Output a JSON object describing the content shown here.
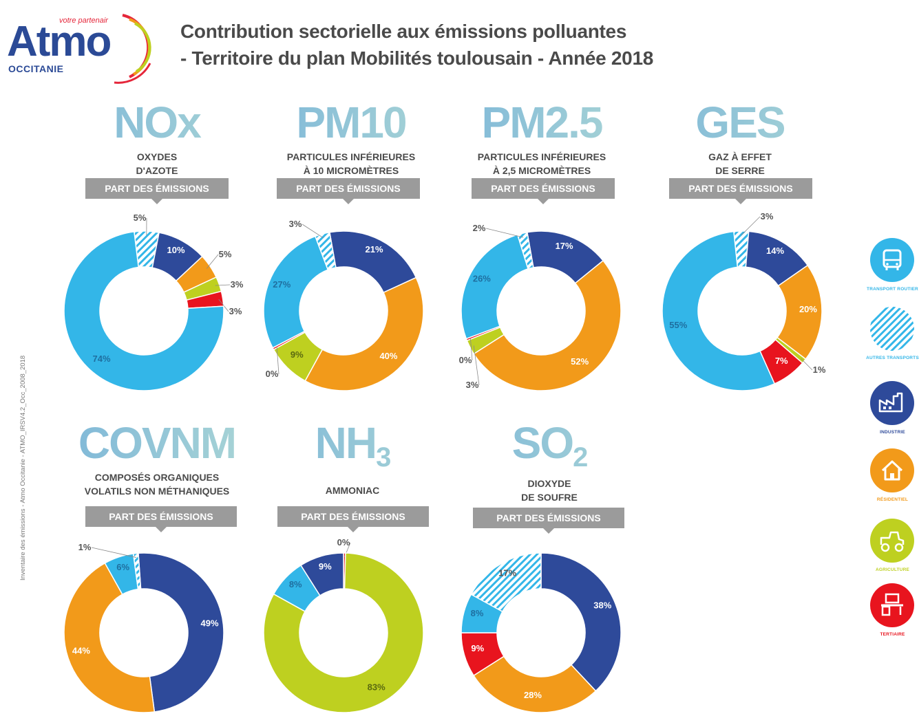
{
  "header": {
    "logo_tagline": "votre partenair",
    "logo_word": "Atmo",
    "logo_region": "OCCITANIE",
    "title_line1": "Contribution sectorielle aux émissions polluantes",
    "title_line2": "- Territoire du plan Mobilités toulousain - Année 2018"
  },
  "side_note": "Inventaire des émissions - Atmo Occitanie - ATMO_IRSV4.2_Occ_2008_2018",
  "badge_label": "PART DES ÉMISSIONS",
  "colors": {
    "transport_routier": "#33b6e8",
    "autres_transports": "#33b6e8",
    "industrie": "#2e4a9a",
    "residentiel": "#f29a1a",
    "agriculture": "#bed020",
    "tertiaire": "#e8141e"
  },
  "legend": [
    {
      "key": "transport_routier",
      "label": "TRANSPORT ROUTIER",
      "icon": "bus-icon"
    },
    {
      "key": "autres_transports",
      "label": "AUTRES TRANSPORTS",
      "icon": "hatched-circle-icon"
    },
    {
      "key": "industrie",
      "label": "INDUSTRIE",
      "icon": "factory-icon"
    },
    {
      "key": "residentiel",
      "label": "RÉSIDENTIEL",
      "icon": "house-icon"
    },
    {
      "key": "agriculture",
      "label": "AGRICULTURE",
      "icon": "tractor-icon"
    },
    {
      "key": "tertiaire",
      "label": "TERTIAIRE",
      "icon": "office-desk-icon"
    }
  ],
  "chart_data": [
    {
      "type": "pie",
      "code": "NOx",
      "sub": "",
      "desc1": "OXYDES",
      "desc2": "D'AZOTE",
      "slices": [
        {
          "sector": "autres_transports",
          "value": 5,
          "label": "5%"
        },
        {
          "sector": "industrie",
          "value": 10,
          "label": "10%"
        },
        {
          "sector": "residentiel",
          "value": 5,
          "label": "5%"
        },
        {
          "sector": "agriculture",
          "value": 3,
          "label": "3%"
        },
        {
          "sector": "tertiaire",
          "value": 3,
          "label": "3%"
        },
        {
          "sector": "transport_routier",
          "value": 74,
          "label": "74%"
        }
      ]
    },
    {
      "type": "pie",
      "code": "PM10",
      "sub": "",
      "desc1": "PARTICULES INFÉRIEURES",
      "desc2": "À 10 MICROMÈTRES",
      "slices": [
        {
          "sector": "industrie",
          "value": 21,
          "label": "21%"
        },
        {
          "sector": "residentiel",
          "value": 40,
          "label": "40%"
        },
        {
          "sector": "agriculture",
          "value": 9,
          "label": "9%"
        },
        {
          "sector": "tertiaire",
          "value": 0.4,
          "label": "0%"
        },
        {
          "sector": "transport_routier",
          "value": 27,
          "label": "27%"
        },
        {
          "sector": "autres_transports",
          "value": 3,
          "label": "3%"
        }
      ]
    },
    {
      "type": "pie",
      "code": "PM2.5",
      "sub": "",
      "desc1": "PARTICULES INFÉRIEURES",
      "desc2": "À 2,5 MICROMÈTRES",
      "slices": [
        {
          "sector": "industrie",
          "value": 17,
          "label": "17%"
        },
        {
          "sector": "residentiel",
          "value": 52,
          "label": "52%"
        },
        {
          "sector": "agriculture",
          "value": 3,
          "label": "3%"
        },
        {
          "sector": "tertiaire",
          "value": 0.4,
          "label": "0%"
        },
        {
          "sector": "transport_routier",
          "value": 26,
          "label": "26%"
        },
        {
          "sector": "autres_transports",
          "value": 2,
          "label": "2%"
        }
      ]
    },
    {
      "type": "pie",
      "code": "GES",
      "sub": "",
      "desc1": "GAZ À EFFET",
      "desc2": "DE SERRE",
      "slices": [
        {
          "sector": "autres_transports",
          "value": 3,
          "label": "3%"
        },
        {
          "sector": "industrie",
          "value": 14,
          "label": "14%"
        },
        {
          "sector": "residentiel",
          "value": 20,
          "label": "20%"
        },
        {
          "sector": "agriculture",
          "value": 1,
          "label": "1%"
        },
        {
          "sector": "tertiaire",
          "value": 7,
          "label": "7%"
        },
        {
          "sector": "transport_routier",
          "value": 55,
          "label": "55%"
        }
      ]
    },
    {
      "type": "pie",
      "code": "COVNM",
      "sub": "",
      "desc1": "COMPOSÉS ORGANIQUES",
      "desc2": "VOLATILS NON MÉTHANIQUES",
      "slices": [
        {
          "sector": "industrie",
          "value": 49,
          "label": "49%"
        },
        {
          "sector": "residentiel",
          "value": 44,
          "label": "44%"
        },
        {
          "sector": "transport_routier",
          "value": 6,
          "label": "6%"
        },
        {
          "sector": "autres_transports",
          "value": 1,
          "label": "1%"
        }
      ]
    },
    {
      "type": "pie",
      "code": "NH",
      "sub": "3",
      "desc1": "AMMONIAC",
      "desc2": "",
      "slices": [
        {
          "sector": "tertiaire",
          "value": 0.4,
          "label": "0%"
        },
        {
          "sector": "agriculture",
          "value": 83,
          "label": "83%"
        },
        {
          "sector": "transport_routier",
          "value": 8,
          "label": "8%"
        },
        {
          "sector": "industrie",
          "value": 9,
          "label": "9%"
        }
      ]
    },
    {
      "type": "pie",
      "code": "SO",
      "sub": "2",
      "desc1": "DIOXYDE",
      "desc2": "DE SOUFRE",
      "slices": [
        {
          "sector": "industrie",
          "value": 38,
          "label": "38%"
        },
        {
          "sector": "residentiel",
          "value": 28,
          "label": "28%"
        },
        {
          "sector": "tertiaire",
          "value": 9,
          "label": "9%"
        },
        {
          "sector": "transport_routier",
          "value": 8,
          "label": "8%"
        },
        {
          "sector": "autres_transports",
          "value": 17,
          "label": "17%"
        }
      ]
    }
  ]
}
